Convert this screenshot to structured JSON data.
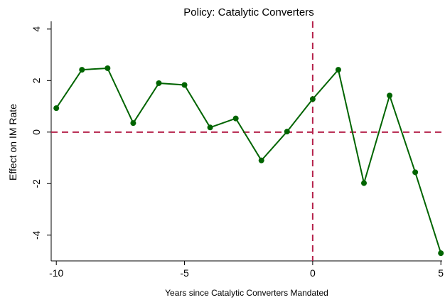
{
  "chart_data": {
    "type": "line",
    "title": "Policy:  Catalytic Converters",
    "xlabel": "Years since Catalytic Converters Mandated",
    "ylabel": "Effect on IM Rate",
    "xlim": [
      -10.2,
      5.05
    ],
    "ylim": [
      -5.0,
      4.3
    ],
    "xticks": [
      -10,
      -5,
      0,
      5
    ],
    "yticks": [
      -4,
      -2,
      0,
      2,
      4
    ],
    "xtick_labels": [
      "-10",
      "-5",
      "0",
      "5"
    ],
    "ytick_labels": [
      "-4",
      "-2",
      "0",
      "2",
      "4"
    ],
    "grid": false,
    "reference_lines": {
      "x": 0,
      "y": 0,
      "color": "#b5204a",
      "style": "dashed"
    },
    "series": [
      {
        "color": "#006400",
        "x": [
          -10,
          -9,
          -8,
          -7,
          -6,
          -5,
          -4,
          -3,
          -2,
          -1,
          0,
          1,
          2,
          3,
          4,
          5
        ],
        "y": [
          0.93,
          2.42,
          2.48,
          0.35,
          1.9,
          1.83,
          0.18,
          0.53,
          -1.1,
          0.02,
          1.28,
          2.42,
          -1.98,
          1.42,
          -1.56,
          -4.7
        ]
      }
    ]
  }
}
